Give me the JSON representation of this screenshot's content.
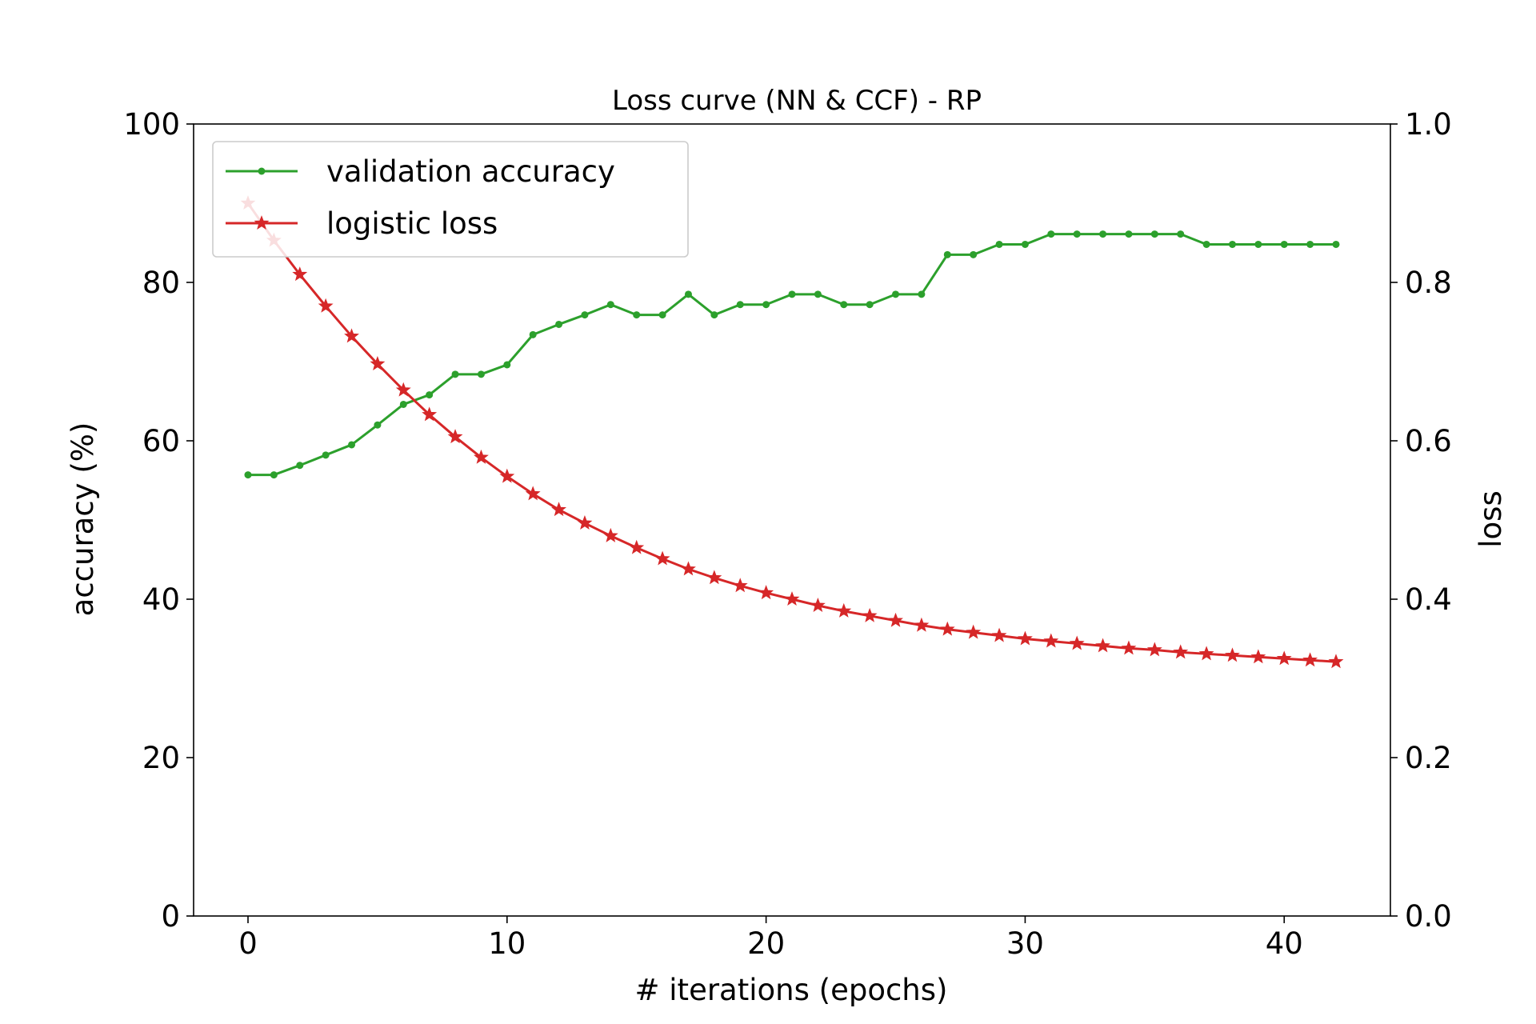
{
  "chart_data": {
    "type": "line",
    "title": "Loss curve (NN & CCF) - RP",
    "xlabel": "# iterations (epochs)",
    "ylabel": "accuracy (%)",
    "y2label": "loss",
    "xlim": [
      -2.1,
      44.1
    ],
    "ylim": [
      0,
      100
    ],
    "y2lim": [
      0.0,
      1.0
    ],
    "xticks": [
      0,
      10,
      20,
      30,
      40
    ],
    "xtick_labels": [
      "0",
      "10",
      "20",
      "30",
      "40"
    ],
    "yticks": [
      0,
      20,
      40,
      60,
      80,
      100
    ],
    "ytick_labels": [
      "0",
      "20",
      "40",
      "60",
      "80",
      "100"
    ],
    "y2ticks": [
      0.0,
      0.2,
      0.4,
      0.6,
      0.8,
      1.0
    ],
    "y2tick_labels": [
      "0.0",
      "0.2",
      "0.4",
      "0.6",
      "0.8",
      "1.0"
    ],
    "grid": false,
    "legend_position": "top-left",
    "x": [
      0,
      1,
      2,
      3,
      4,
      5,
      6,
      7,
      8,
      9,
      10,
      11,
      12,
      13,
      14,
      15,
      16,
      17,
      18,
      19,
      20,
      21,
      22,
      23,
      24,
      25,
      26,
      27,
      28,
      29,
      30,
      31,
      32,
      33,
      34,
      35,
      36,
      37,
      38,
      39,
      40,
      41,
      42
    ],
    "series": [
      {
        "name": "validation accuracy",
        "axis": "left",
        "color": "#2ca02c",
        "marker": "dot",
        "values": [
          55.7,
          55.7,
          56.9,
          58.2,
          59.5,
          62.0,
          64.6,
          65.8,
          68.4,
          68.4,
          69.6,
          73.4,
          74.7,
          75.9,
          77.2,
          75.9,
          75.9,
          78.5,
          75.9,
          77.2,
          77.2,
          78.5,
          78.5,
          77.2,
          77.2,
          78.5,
          78.5,
          83.5,
          83.5,
          84.8,
          84.8,
          86.1,
          86.1,
          86.1,
          86.1,
          86.1,
          86.1,
          84.8,
          84.8,
          84.8,
          84.8,
          84.8,
          84.8
        ]
      },
      {
        "name": "logistic loss",
        "axis": "right",
        "color": "#d62728",
        "marker": "star",
        "values": [
          0.9,
          0.853,
          0.81,
          0.77,
          0.732,
          0.697,
          0.664,
          0.633,
          0.605,
          0.579,
          0.555,
          0.533,
          0.513,
          0.496,
          0.48,
          0.465,
          0.451,
          0.438,
          0.427,
          0.417,
          0.408,
          0.4,
          0.392,
          0.385,
          0.379,
          0.373,
          0.367,
          0.362,
          0.358,
          0.354,
          0.35,
          0.347,
          0.344,
          0.341,
          0.338,
          0.336,
          0.333,
          0.331,
          0.329,
          0.327,
          0.325,
          0.323,
          0.321
        ]
      }
    ]
  }
}
